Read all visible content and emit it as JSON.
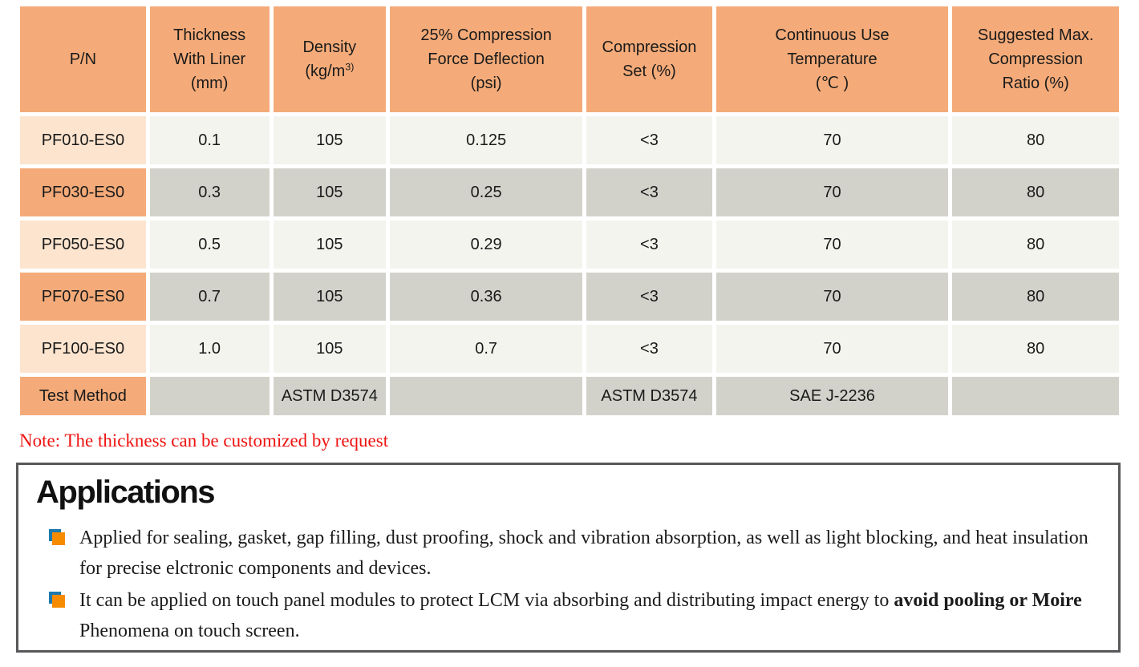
{
  "colors": {
    "header_orange": "#F4AB79",
    "pn_cell_light": "#FCE4CF",
    "cell_light_gray": "#F4F4EF",
    "cell_dark_gray": "#D2D2CB",
    "note_red": "#EE1311",
    "bullet_orange": "#F78B00",
    "bullet_blue": "#1B7AAE",
    "box_border_gray": "#58585A"
  },
  "table": {
    "columns": [
      {
        "id": "pn",
        "lines": [
          "P/N"
        ]
      },
      {
        "id": "thickness",
        "lines": [
          "Thickness",
          "With Liner",
          "(mm)"
        ]
      },
      {
        "id": "density",
        "lines": [
          "Density",
          {
            "pre": "(kg/m",
            "sup": "3)"
          }
        ]
      },
      {
        "id": "cfd",
        "lines": [
          "25% Compression",
          "Force Deflection",
          "(psi)"
        ]
      },
      {
        "id": "set",
        "lines": [
          "Compression",
          "Set (%)"
        ]
      },
      {
        "id": "temp",
        "lines": [
          "Continuous Use",
          "Temperature",
          "(℃ )"
        ]
      },
      {
        "id": "ratio",
        "lines": [
          "Suggested Max.",
          "Compression",
          "Ratio (%)"
        ]
      }
    ],
    "rows": [
      {
        "pn": "PF010-ES0",
        "style": "light",
        "values": [
          "0.1",
          "105",
          "0.125",
          "<3",
          "70",
          "80"
        ]
      },
      {
        "pn": "PF030-ES0",
        "style": "dark",
        "values": [
          "0.3",
          "105",
          "0.25",
          "<3",
          "70",
          "80"
        ]
      },
      {
        "pn": "PF050-ES0",
        "style": "light",
        "values": [
          "0.5",
          "105",
          "0.29",
          "<3",
          "70",
          "80"
        ]
      },
      {
        "pn": "PF070-ES0",
        "style": "dark",
        "values": [
          "0.7",
          "105",
          "0.36",
          "<3",
          "70",
          "80"
        ]
      },
      {
        "pn": "PF100-ES0",
        "style": "light",
        "values": [
          "1.0",
          "105",
          "0.7",
          "<3",
          "70",
          "80"
        ]
      },
      {
        "pn": "Test Method",
        "style": "test",
        "values": [
          "",
          "ASTM D3574",
          "",
          "ASTM D3574",
          "SAE J-2236",
          ""
        ]
      }
    ]
  },
  "note": "Note: The thickness can be customized by request",
  "applications": {
    "title": "Applications",
    "bullets": [
      {
        "segments": [
          {
            "bold": false,
            "text": "Applied for sealing, gasket, gap filling, dust proofing, shock and vibration absorption, as well as light blocking, and heat insulation for precise elctronic components and devices."
          }
        ]
      },
      {
        "segments": [
          {
            "bold": false,
            "text": "It can be applied on touch panel modules to protect LCM via absorbing and distributing impact energy to "
          },
          {
            "bold": true,
            "text": "avoid pooling or Moire"
          },
          {
            "bold": false,
            "text": " Phenomena on touch screen."
          }
        ]
      }
    ]
  }
}
